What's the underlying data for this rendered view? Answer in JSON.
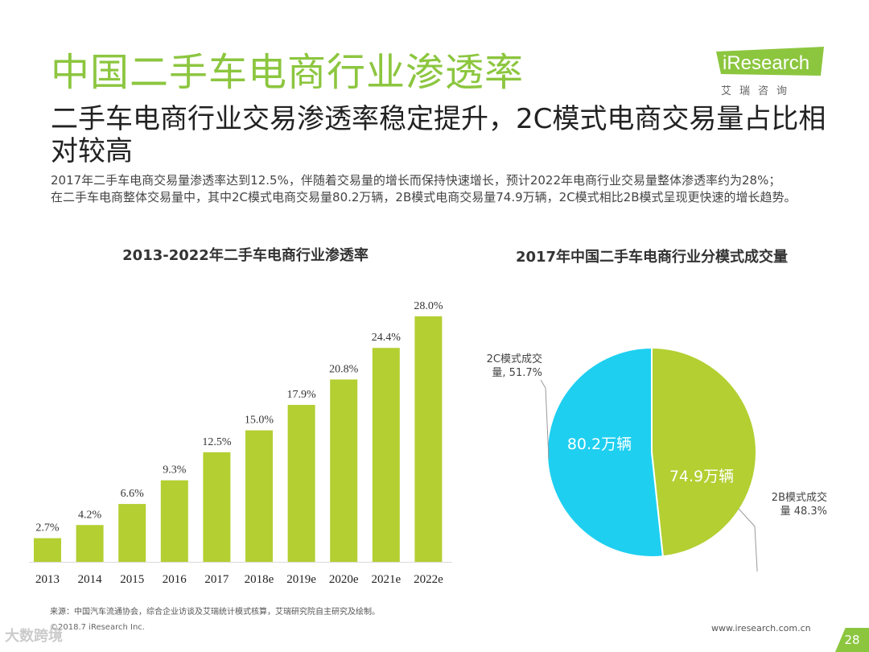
{
  "header": {
    "title": "中国二手车电商行业渗透率",
    "subtitle": "二手车电商行业交易渗透率稳定提升，2C模式电商交易量占比相对较高"
  },
  "logo": {
    "brand": "iResearch",
    "sub": "艾瑞咨询"
  },
  "description": {
    "para1": "2017年二手车电商交易量渗透率达到12.5%，伴随着交易量的增长而保持快速增长，预计2022年电商行业交易量整体渗透率约为28%；",
    "para2": "在二手车电商整体交易量中，其中2C模式电商交易量80.2万辆，2B模式电商交易量74.9万辆，2C模式相比2B模式呈现更快速的增长趋势。"
  },
  "colors": {
    "accent": "#8cc63f",
    "bar": "#b3cf32",
    "pie_2c": "#1ecff0",
    "pie_2b": "#b3cf32"
  },
  "chart_data": [
    {
      "type": "bar",
      "title": "2013-2022年二手车电商行业渗透率",
      "categories": [
        "2013",
        "2014",
        "2015",
        "2016",
        "2017",
        "2018e",
        "2019e",
        "2020e",
        "2021e",
        "2022e"
      ],
      "values": [
        2.7,
        4.2,
        6.6,
        9.3,
        12.5,
        15.0,
        17.9,
        20.8,
        24.4,
        28.0
      ],
      "value_labels": [
        "2.7%",
        "4.2%",
        "6.6%",
        "9.3%",
        "12.5%",
        "15.0%",
        "17.9%",
        "20.8%",
        "24.4%",
        "28.0%"
      ],
      "unit": "%",
      "ylim": [
        0,
        28
      ]
    },
    {
      "type": "pie",
      "title": "2017年中国二手车电商行业分模式成交量",
      "slices": [
        {
          "name": "2C模式成交量",
          "percent": 51.7,
          "label": "2C模式成交量, 51.7%",
          "inner_label": "80.2万辆",
          "value": 80.2
        },
        {
          "name": "2B模式成交量",
          "percent": 48.3,
          "label": "2B模式成交量 48.3%",
          "inner_label": "74.9万辆",
          "value": 74.9
        }
      ]
    }
  ],
  "footer": {
    "source": "来源：中国汽车流通协会，综合企业访谈及艾瑞统计模式核算，艾瑞研究院自主研究及绘制。",
    "copyright": "©2018.7 iResearch Inc.",
    "website": "www.iresearch.com.cn",
    "page": "28",
    "watermark": "大数跨境"
  }
}
